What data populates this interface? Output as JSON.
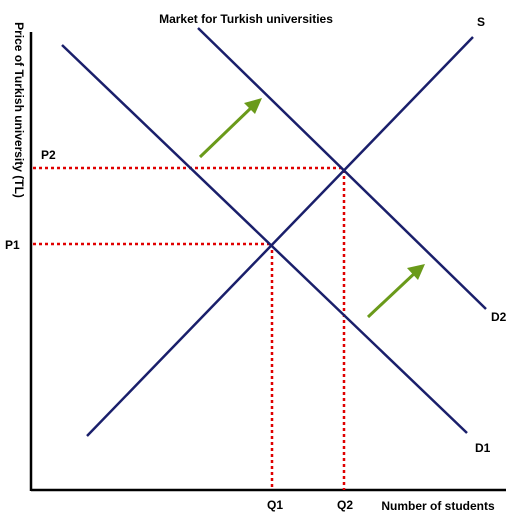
{
  "title": "Market for Turkish universities",
  "x_axis_label": "Number of students",
  "y_axis_label": "Price of Turkish university (TL)",
  "curves": {
    "supply": "S",
    "demand_original": "D1",
    "demand_new": "D2"
  },
  "equilibria": {
    "initial": {
      "price": "P1",
      "quantity": "Q1"
    },
    "new": {
      "price": "P2",
      "quantity": "Q2"
    }
  },
  "colors": {
    "curve": "#1a1f6b",
    "axis": "#000000",
    "guide": "#e00000",
    "arrow": "#6a9a1a"
  }
}
